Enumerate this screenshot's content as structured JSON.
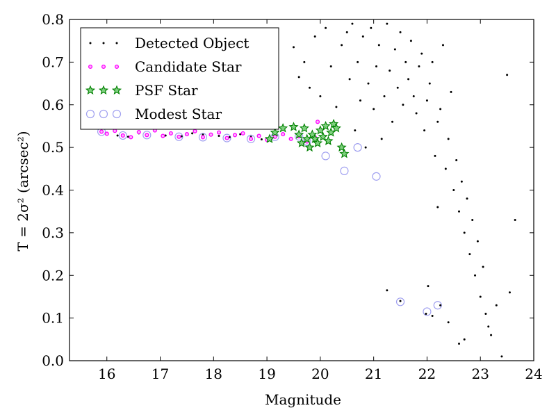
{
  "chart_data": {
    "type": "scatter",
    "xlabel": "Magnitude",
    "ylabel": "T = 2σ² (arcsec²)",
    "xlim": [
      15.3,
      24
    ],
    "ylim": [
      0.0,
      0.8
    ],
    "xticks": [
      "16",
      "17",
      "18",
      "19",
      "20",
      "21",
      "22",
      "23",
      "24"
    ],
    "yticks": [
      "0.0",
      "0.1",
      "0.2",
      "0.3",
      "0.4",
      "0.5",
      "0.6",
      "0.7",
      "0.8"
    ],
    "grid": false,
    "legend_position": "top-left",
    "series": [
      {
        "name": "Detected Object",
        "marker": "dot",
        "color": "#000000",
        "points": [
          [
            15.9,
            0.537
          ],
          [
            16.2,
            0.528
          ],
          [
            16.4,
            0.525
          ],
          [
            16.6,
            0.533
          ],
          [
            16.9,
            0.538
          ],
          [
            17.1,
            0.528
          ],
          [
            17.4,
            0.526
          ],
          [
            17.6,
            0.533
          ],
          [
            17.8,
            0.53
          ],
          [
            18.1,
            0.527
          ],
          [
            18.3,
            0.524
          ],
          [
            18.5,
            0.531
          ],
          [
            18.7,
            0.525
          ],
          [
            18.9,
            0.519
          ],
          [
            19.5,
            0.735
          ],
          [
            19.6,
            0.665
          ],
          [
            19.7,
            0.7
          ],
          [
            19.8,
            0.64
          ],
          [
            19.9,
            0.76
          ],
          [
            20.0,
            0.62
          ],
          [
            20.1,
            0.78
          ],
          [
            20.2,
            0.69
          ],
          [
            20.3,
            0.595
          ],
          [
            20.4,
            0.74
          ],
          [
            20.5,
            0.77
          ],
          [
            20.55,
            0.66
          ],
          [
            20.6,
            0.79
          ],
          [
            20.65,
            0.54
          ],
          [
            20.7,
            0.7
          ],
          [
            20.75,
            0.61
          ],
          [
            20.8,
            0.76
          ],
          [
            20.85,
            0.5
          ],
          [
            20.9,
            0.65
          ],
          [
            20.95,
            0.78
          ],
          [
            21.0,
            0.59
          ],
          [
            21.05,
            0.69
          ],
          [
            21.1,
            0.74
          ],
          [
            21.15,
            0.52
          ],
          [
            21.2,
            0.62
          ],
          [
            21.25,
            0.79
          ],
          [
            21.3,
            0.68
          ],
          [
            21.35,
            0.56
          ],
          [
            21.4,
            0.73
          ],
          [
            21.45,
            0.64
          ],
          [
            21.5,
            0.77
          ],
          [
            21.55,
            0.6
          ],
          [
            21.6,
            0.7
          ],
          [
            21.65,
            0.66
          ],
          [
            21.7,
            0.75
          ],
          [
            21.75,
            0.62
          ],
          [
            21.8,
            0.58
          ],
          [
            21.85,
            0.69
          ],
          [
            21.9,
            0.72
          ],
          [
            21.95,
            0.54
          ],
          [
            22.0,
            0.61
          ],
          [
            22.05,
            0.65
          ],
          [
            22.1,
            0.7
          ],
          [
            22.15,
            0.48
          ],
          [
            22.2,
            0.56
          ],
          [
            22.25,
            0.59
          ],
          [
            22.3,
            0.74
          ],
          [
            22.35,
            0.45
          ],
          [
            22.4,
            0.52
          ],
          [
            22.45,
            0.63
          ],
          [
            22.5,
            0.4
          ],
          [
            22.55,
            0.47
          ],
          [
            22.6,
            0.35
          ],
          [
            22.65,
            0.42
          ],
          [
            22.7,
            0.3
          ],
          [
            22.75,
            0.38
          ],
          [
            22.8,
            0.25
          ],
          [
            22.85,
            0.33
          ],
          [
            22.9,
            0.2
          ],
          [
            22.95,
            0.28
          ],
          [
            23.0,
            0.15
          ],
          [
            23.05,
            0.22
          ],
          [
            23.1,
            0.11
          ],
          [
            23.15,
            0.08
          ],
          [
            23.2,
            0.06
          ],
          [
            23.3,
            0.13
          ],
          [
            23.4,
            0.01
          ],
          [
            23.5,
            0.67
          ],
          [
            23.55,
            0.16
          ],
          [
            23.65,
            0.33
          ],
          [
            21.25,
            0.165
          ],
          [
            21.5,
            0.14
          ],
          [
            21.98,
            0.11
          ],
          [
            22.02,
            0.175
          ],
          [
            22.1,
            0.105
          ],
          [
            22.25,
            0.13
          ],
          [
            22.4,
            0.09
          ],
          [
            22.6,
            0.04
          ],
          [
            22.7,
            0.05
          ],
          [
            22.2,
            0.36
          ]
        ]
      },
      {
        "name": "Candidate Star",
        "marker": "circle-small",
        "color": "#ff00ff",
        "points": [
          [
            15.9,
            0.537
          ],
          [
            16.0,
            0.532
          ],
          [
            16.15,
            0.539
          ],
          [
            16.3,
            0.528
          ],
          [
            16.45,
            0.524
          ],
          [
            16.6,
            0.536
          ],
          [
            16.75,
            0.529
          ],
          [
            16.9,
            0.54
          ],
          [
            17.05,
            0.527
          ],
          [
            17.2,
            0.533
          ],
          [
            17.35,
            0.525
          ],
          [
            17.5,
            0.531
          ],
          [
            17.65,
            0.538
          ],
          [
            17.8,
            0.524
          ],
          [
            17.95,
            0.53
          ],
          [
            18.1,
            0.535
          ],
          [
            18.25,
            0.522
          ],
          [
            18.4,
            0.529
          ],
          [
            18.55,
            0.533
          ],
          [
            18.7,
            0.52
          ],
          [
            18.85,
            0.527
          ],
          [
            19.0,
            0.518
          ],
          [
            19.15,
            0.525
          ],
          [
            19.3,
            0.531
          ],
          [
            19.45,
            0.52
          ],
          [
            19.6,
            0.526
          ],
          [
            19.75,
            0.514
          ],
          [
            19.9,
            0.523
          ],
          [
            19.95,
            0.56
          ]
        ]
      },
      {
        "name": "PSF Star",
        "marker": "star",
        "color": "#008000",
        "points": [
          [
            19.05,
            0.52
          ],
          [
            19.15,
            0.535
          ],
          [
            19.3,
            0.545
          ],
          [
            19.5,
            0.548
          ],
          [
            19.6,
            0.53
          ],
          [
            19.65,
            0.51
          ],
          [
            19.7,
            0.545
          ],
          [
            19.75,
            0.52
          ],
          [
            19.8,
            0.5
          ],
          [
            19.85,
            0.53
          ],
          [
            19.9,
            0.52
          ],
          [
            19.95,
            0.51
          ],
          [
            20.0,
            0.54
          ],
          [
            20.05,
            0.525
          ],
          [
            20.1,
            0.55
          ],
          [
            20.15,
            0.515
          ],
          [
            20.2,
            0.535
          ],
          [
            20.25,
            0.555
          ],
          [
            20.3,
            0.545
          ],
          [
            20.4,
            0.5
          ],
          [
            20.45,
            0.485
          ]
        ]
      },
      {
        "name": "Modest Star",
        "marker": "circle-open",
        "color": "#a0a0f0",
        "points": [
          [
            15.9,
            0.537
          ],
          [
            16.3,
            0.528
          ],
          [
            16.75,
            0.529
          ],
          [
            17.35,
            0.525
          ],
          [
            17.8,
            0.524
          ],
          [
            18.25,
            0.522
          ],
          [
            18.7,
            0.52
          ],
          [
            19.15,
            0.525
          ],
          [
            19.6,
            0.526
          ],
          [
            19.75,
            0.514
          ],
          [
            20.1,
            0.48
          ],
          [
            20.45,
            0.445
          ],
          [
            20.7,
            0.5
          ],
          [
            21.05,
            0.432
          ],
          [
            21.5,
            0.138
          ],
          [
            22.0,
            0.115
          ],
          [
            22.2,
            0.13
          ]
        ]
      }
    ]
  }
}
